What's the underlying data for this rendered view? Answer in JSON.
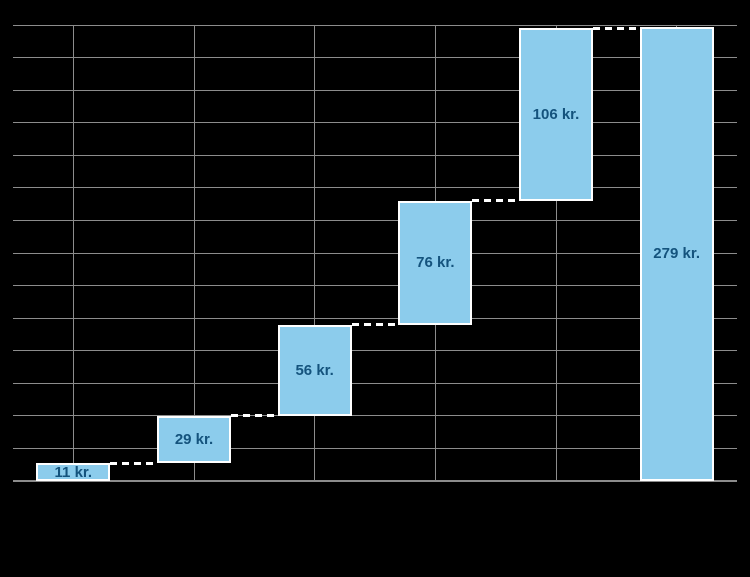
{
  "chart_data": {
    "type": "bar",
    "subtype": "waterfall",
    "title": "",
    "unit": "kr.",
    "categories": [
      "",
      "",
      "",
      "",
      "",
      ""
    ],
    "steps": [
      {
        "label": "11 kr.",
        "value": 11,
        "role": "increase"
      },
      {
        "label": "29 kr.",
        "value": 29,
        "role": "increase"
      },
      {
        "label": "56 kr.",
        "value": 56,
        "role": "increase"
      },
      {
        "label": "76 kr.",
        "value": 76,
        "role": "increase"
      },
      {
        "label": "106 kr.",
        "value": 106,
        "role": "increase"
      },
      {
        "label": "279 kr.",
        "value": 279,
        "role": "total"
      }
    ],
    "ylim": [
      0,
      280
    ],
    "ytick_step": 20,
    "grid": true,
    "legend": false,
    "connector_style": "dashed",
    "colors": {
      "background": "#000000",
      "bar_fill": "#8CCCEC",
      "bar_outline": "#FFFFFF",
      "bar_label": "#14537D",
      "gridline": "#8C8C8C",
      "axis_line": "#8C8C8C",
      "connector": "#FFFFFF"
    }
  }
}
